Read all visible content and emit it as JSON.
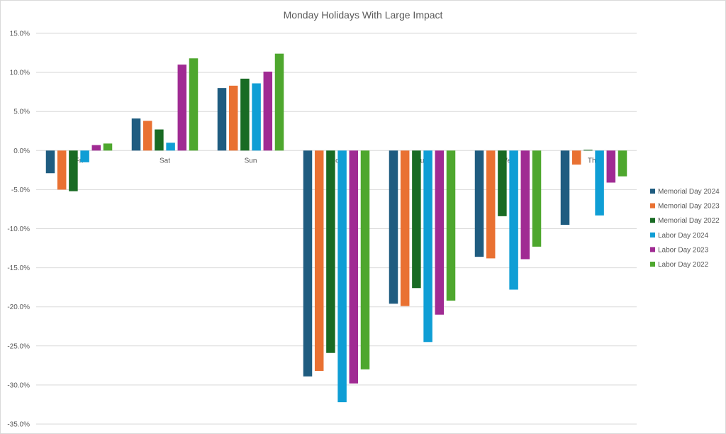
{
  "chart_data": {
    "type": "bar",
    "title": "Monday Holidays With Large Impact",
    "xlabel": "",
    "ylabel": "",
    "categories": [
      "Fri",
      "Sat",
      "Sun",
      "Mon",
      "Tue",
      "Wed",
      "Thu"
    ],
    "ylim": [
      -35,
      15
    ],
    "yticks": [
      15,
      10,
      5,
      0,
      -5,
      -10,
      -15,
      -20,
      -25,
      -30,
      -35
    ],
    "ytick_format": "percent_1dp",
    "grid": true,
    "legend_position": "right",
    "series": [
      {
        "name": "Memorial Day 2024",
        "color": "#1f5c80",
        "values": [
          -2.9,
          4.1,
          8.0,
          -28.9,
          -19.6,
          -13.6,
          -9.5
        ]
      },
      {
        "name": "Memorial Day 2023",
        "color": "#e97132",
        "values": [
          -5.0,
          3.8,
          8.3,
          -28.2,
          -19.9,
          -13.8,
          -1.8
        ]
      },
      {
        "name": "Memorial Day 2022",
        "color": "#196b24",
        "values": [
          -5.2,
          2.7,
          9.2,
          -25.9,
          -17.6,
          -8.4,
          0.1
        ]
      },
      {
        "name": "Labor Day 2024",
        "color": "#0f9ed5",
        "values": [
          -1.5,
          1.0,
          8.6,
          -32.2,
          -24.5,
          -17.8,
          -8.3
        ]
      },
      {
        "name": "Labor Day 2023",
        "color": "#a02b93",
        "values": [
          0.7,
          11.0,
          10.1,
          -29.8,
          -21.0,
          -13.9,
          -4.1
        ]
      },
      {
        "name": "Labor Day 2022",
        "color": "#4ea72e",
        "values": [
          0.9,
          11.8,
          12.4,
          -28.0,
          -19.2,
          -12.3,
          -3.3
        ]
      }
    ]
  }
}
